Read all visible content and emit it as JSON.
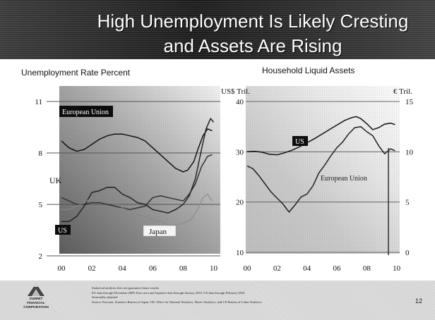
{
  "title": {
    "line1": "High Unemployment Is Likely Cresting",
    "line2": "and Assets Are Rising"
  },
  "chart_data": [
    {
      "type": "line",
      "title": "Unemployment Rate Percent",
      "x_ticks": [
        "00",
        "02",
        "04",
        "06",
        "08",
        "10"
      ],
      "y_ticks": [
        2,
        5,
        8,
        11
      ],
      "xlim": [
        2000,
        2010.3
      ],
      "ylim": [
        2,
        11
      ],
      "series": [
        {
          "name": "European Union",
          "color": "#111111",
          "x": [
            2000.0,
            2000.5,
            2001.0,
            2001.5,
            2002.0,
            2002.5,
            2003.0,
            2003.5,
            2004.0,
            2004.5,
            2005.0,
            2005.5,
            2006.0,
            2006.5,
            2007.0,
            2007.5,
            2008.0,
            2008.3,
            2008.7,
            2009.0,
            2009.3,
            2009.6,
            2009.9
          ],
          "values": [
            8.7,
            8.3,
            8.1,
            8.2,
            8.5,
            8.8,
            9.0,
            9.1,
            9.1,
            9.0,
            8.9,
            8.7,
            8.3,
            7.9,
            7.5,
            7.1,
            6.9,
            7.0,
            7.5,
            8.3,
            9.0,
            9.4,
            9.3
          ]
        },
        {
          "name": "UK",
          "color": "#333333",
          "x": [
            2000.0,
            2000.5,
            2001.0,
            2001.5,
            2002.0,
            2002.5,
            2003.0,
            2003.5,
            2004.0,
            2004.5,
            2005.0,
            2005.5,
            2006.0,
            2006.5,
            2007.0,
            2007.5,
            2008.0,
            2008.4,
            2008.8,
            2009.2,
            2009.6,
            2009.9
          ],
          "values": [
            5.4,
            5.2,
            5.0,
            5.0,
            5.1,
            5.1,
            5.0,
            4.9,
            4.8,
            4.7,
            4.8,
            4.9,
            5.4,
            5.5,
            5.4,
            5.3,
            5.2,
            5.6,
            6.2,
            7.2,
            7.8,
            7.9
          ]
        },
        {
          "name": "US",
          "color": "#222222",
          "x": [
            2000.0,
            2000.5,
            2001.0,
            2001.5,
            2002.0,
            2002.5,
            2003.0,
            2003.5,
            2004.0,
            2004.5,
            2005.0,
            2005.5,
            2006.0,
            2006.5,
            2007.0,
            2007.5,
            2008.0,
            2008.4,
            2008.8,
            2009.2,
            2009.5,
            2009.8,
            2010.0
          ],
          "values": [
            4.0,
            4.0,
            4.3,
            4.9,
            5.7,
            5.8,
            6.0,
            6.0,
            5.6,
            5.4,
            5.1,
            5.0,
            4.7,
            4.6,
            4.5,
            4.7,
            5.0,
            5.5,
            6.5,
            8.2,
            9.4,
            10.0,
            9.8
          ]
        },
        {
          "name": "Japan",
          "color": "#888888",
          "x": [
            2000.0,
            2000.5,
            2001.0,
            2001.5,
            2002.0,
            2002.5,
            2003.0,
            2003.5,
            2004.0,
            2004.5,
            2005.0,
            2005.5,
            2006.0,
            2006.5,
            2007.0,
            2007.5,
            2008.0,
            2008.5,
            2009.0,
            2009.3,
            2009.6,
            2009.9
          ],
          "values": [
            4.7,
            4.7,
            4.9,
            5.1,
            5.4,
            5.4,
            5.3,
            5.1,
            4.8,
            4.6,
            4.4,
            4.3,
            4.1,
            4.0,
            3.8,
            3.8,
            3.9,
            4.1,
            4.8,
            5.4,
            5.6,
            5.2
          ]
        }
      ]
    },
    {
      "type": "line",
      "title": "Household Liquid Assets",
      "x_ticks": [
        "00",
        "02",
        "04",
        "06",
        "08",
        "10"
      ],
      "y_left_label": "US$ Tril.",
      "y_right_label": "€ Tril.",
      "y_left_ticks": [
        10,
        20,
        30,
        40
      ],
      "y_right_ticks": [
        0,
        5,
        10,
        15
      ],
      "xlim": [
        2000,
        2010.3
      ],
      "ylim_left": [
        10,
        40
      ],
      "ylim_right": [
        0,
        15
      ],
      "series": [
        {
          "name": "US",
          "axis": "left",
          "color": "#111111",
          "x": [
            2000.0,
            2000.5,
            2001.0,
            2001.5,
            2002.0,
            2002.5,
            2003.0,
            2003.5,
            2004.0,
            2004.5,
            2005.0,
            2005.5,
            2006.0,
            2006.5,
            2007.0,
            2007.3,
            2007.6,
            2008.0,
            2008.4,
            2008.8,
            2009.2,
            2009.6,
            2009.9
          ],
          "values": [
            30.0,
            30.1,
            29.9,
            29.5,
            29.4,
            29.8,
            30.3,
            31.0,
            31.8,
            32.6,
            33.5,
            34.4,
            35.3,
            36.2,
            36.8,
            37.0,
            36.6,
            35.6,
            34.4,
            34.8,
            35.5,
            35.7,
            35.4
          ]
        },
        {
          "name": "European Union",
          "axis": "right",
          "color": "#222222",
          "x": [
            2000.0,
            2000.4,
            2000.8,
            2001.2,
            2001.6,
            2002.0,
            2002.4,
            2002.8,
            2003.2,
            2003.6,
            2004.0,
            2004.4,
            2004.8,
            2005.2,
            2005.6,
            2006.0,
            2006.4,
            2006.8,
            2007.2,
            2007.6,
            2008.0,
            2008.4,
            2008.8,
            2009.2,
            2009.6,
            2009.9
          ],
          "values": [
            8.6,
            8.3,
            7.6,
            6.8,
            6.0,
            5.4,
            4.8,
            4.0,
            4.7,
            5.5,
            5.8,
            6.6,
            7.9,
            8.7,
            9.6,
            10.4,
            11.0,
            11.8,
            12.4,
            12.5,
            12.0,
            11.6,
            10.6,
            9.8,
            10.3,
            10.1
          ]
        }
      ]
    }
  ],
  "labels": {
    "left_panel_title": "Unemployment Rate Percent",
    "right_panel_title": "Household Liquid Assets",
    "eu_box": "European Union",
    "uk": "UK",
    "us_box_left": "US",
    "japan": "Japan",
    "us_box_right": "US",
    "european_union_right": "European Union",
    "us_tril": "US$ Tril.",
    "eur_tril": "€ Tril."
  },
  "footer": {
    "footnote_1": "Statistical analysis does not guarantee future results",
    "footnote_2": "EU data through December 2009, Euro area and Japanese data through January 2010, US data through February 2010",
    "footnote_3": "Seasonally adjusted",
    "footnote_4": "Source: Eurostat, Statistics Bureau of Japan, UK Office for National Statistics, Haver Analytics, and US Bureau of Labor Statistics",
    "logo_line_1": "SUMMIT",
    "logo_line_2": "FINANCIAL",
    "logo_line_3": "CORPORATION",
    "page_number": "12"
  },
  "colors": {
    "title_band": "#2a2a2a",
    "plot_dark": "#6a6a6a",
    "plot_light": "#ececec"
  }
}
